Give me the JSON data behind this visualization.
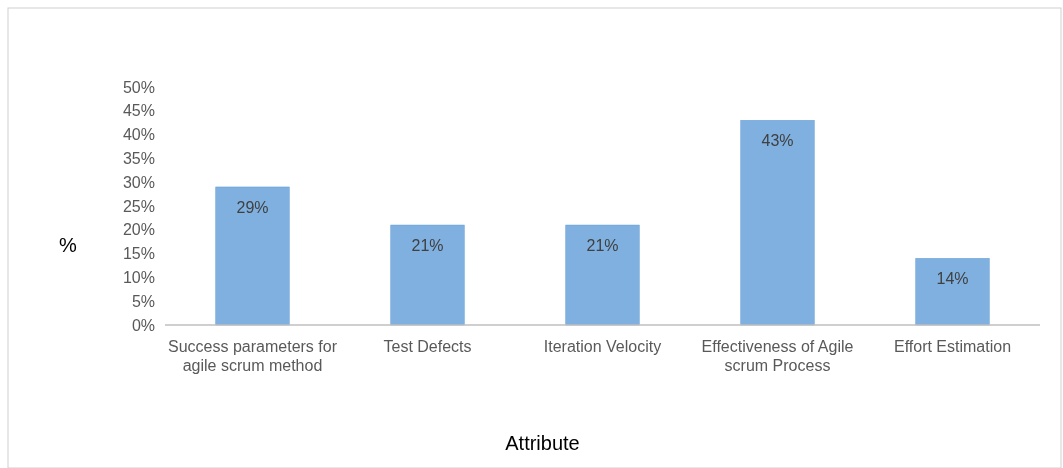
{
  "chart_data": {
    "type": "bar",
    "xlabel": "Attribute",
    "ylabel": "%",
    "categories": [
      "Success parameters for agile scrum method",
      "Test Defects",
      "Iteration Velocity",
      "Effectiveness of Agile scrum Process",
      "Effort Estimation"
    ],
    "values": [
      29,
      21,
      21,
      43,
      14
    ],
    "value_labels": [
      "29%",
      "21%",
      "21%",
      "43%",
      "14%"
    ],
    "color": "#7fb0e0",
    "ylim": [
      0,
      50
    ],
    "yticks": [
      {
        "value": 0,
        "label": "0%"
      },
      {
        "value": 5,
        "label": "5%"
      },
      {
        "value": 10,
        "label": "10%"
      },
      {
        "value": 15,
        "label": "15%"
      },
      {
        "value": 20,
        "label": "20%"
      },
      {
        "value": 25,
        "label": "25%"
      },
      {
        "value": 30,
        "label": "30%"
      },
      {
        "value": 35,
        "label": "35%"
      },
      {
        "value": 40,
        "label": "40%"
      },
      {
        "value": 45,
        "label": "45%"
      },
      {
        "value": 50,
        "label": "50%"
      }
    ],
    "grid": false
  }
}
